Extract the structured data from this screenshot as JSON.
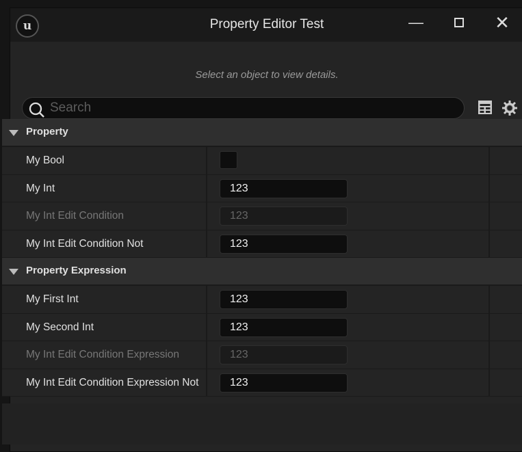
{
  "window": {
    "title": "Property Editor Test",
    "logo": "unreal-logo",
    "minimize": "minimize-icon",
    "maximize": "maximize-icon",
    "close": "close-icon"
  },
  "hint": "Select an object to view details.",
  "search": {
    "placeholder": "Search",
    "value": ""
  },
  "toolbar": {
    "icons": [
      "table-view-icon",
      "settings-gear-icon"
    ]
  },
  "categories": [
    {
      "label": "Property",
      "rows": [
        {
          "name": "My Bool",
          "type": "checkbox",
          "checked": false,
          "enabled": true
        },
        {
          "name": "My Int",
          "value": "123",
          "enabled": true
        },
        {
          "name": "My Int Edit Condition",
          "value": "123",
          "enabled": false
        },
        {
          "name": "My Int Edit Condition Not",
          "value": "123",
          "enabled": true
        }
      ]
    },
    {
      "label": "Property Expression",
      "rows": [
        {
          "name": "My First Int",
          "value": "123",
          "enabled": true
        },
        {
          "name": "My Second Int",
          "value": "123",
          "enabled": true
        },
        {
          "name": "My Int Edit Condition Expression",
          "value": "123",
          "enabled": false
        },
        {
          "name": "My Int Edit Condition Expression Not",
          "value": "123",
          "enabled": true
        }
      ]
    }
  ]
}
